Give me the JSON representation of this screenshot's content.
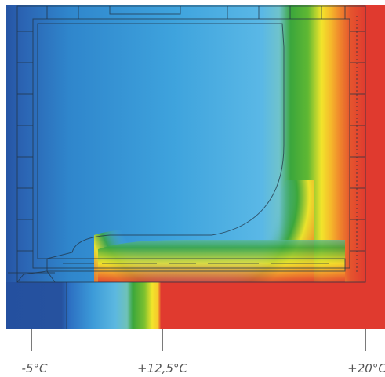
{
  "figure": {
    "labels": [
      "-5°C",
      "+12,5°C",
      "+20°C"
    ],
    "colors": {
      "cold": "#24509f",
      "cold_mid": "#2d8fd2",
      "cold_light": "#51b4e6",
      "green": "#3aa63c",
      "yellow": "#f2e52b",
      "orange": "#f08b2c",
      "warm": "#e03a2f",
      "profile_line": "#223344",
      "tick": "#7a7a7a",
      "label": "#555555"
    }
  }
}
